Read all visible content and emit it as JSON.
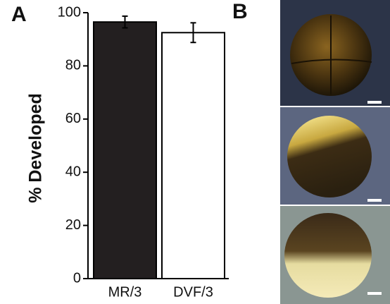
{
  "chart_data": {
    "type": "bar",
    "panel_label": "A",
    "ylabel": "% Developed",
    "categories": [
      "MR/3",
      "DVF/3"
    ],
    "values": [
      96.5,
      92.5
    ],
    "errors": [
      2.2,
      3.7
    ],
    "colors": [
      "#231f20",
      "#ffffff"
    ],
    "edgecolor": "#000000",
    "ylim": [
      0,
      100
    ],
    "yticks": [
      0,
      20,
      40,
      60,
      80,
      100
    ],
    "grid": false
  },
  "images_panel": {
    "label": "B"
  }
}
